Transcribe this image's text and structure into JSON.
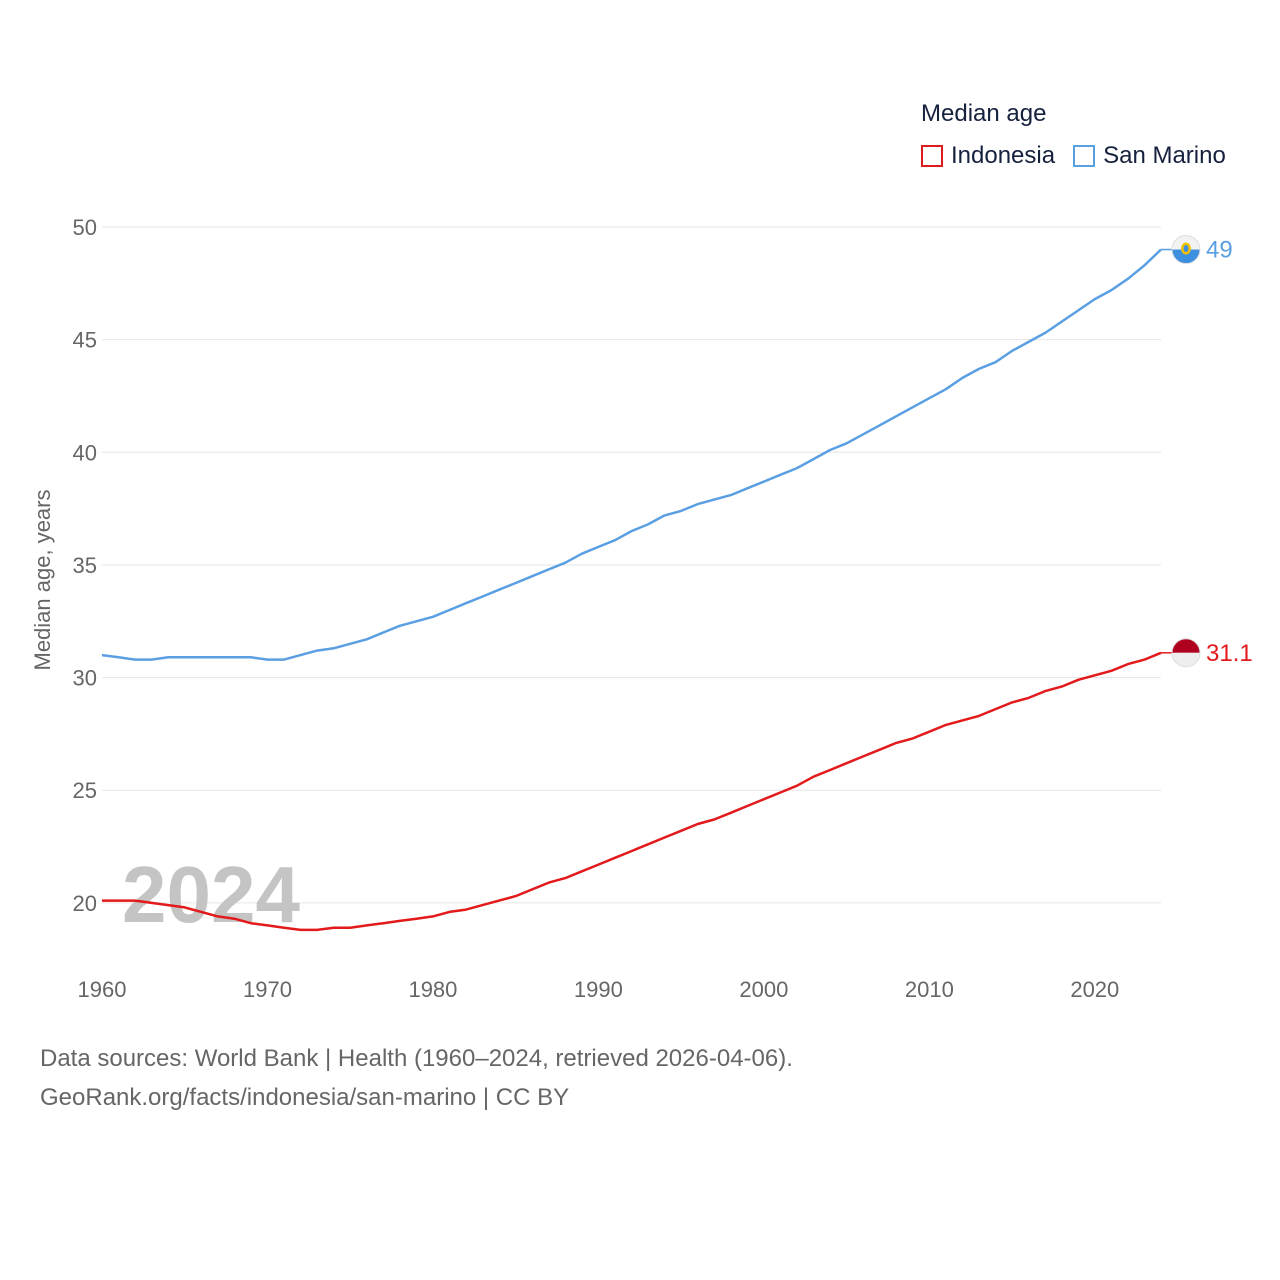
{
  "chart_data": {
    "type": "line",
    "title": "Median age",
    "xlabel": "",
    "ylabel": "Median age, years",
    "xlim": [
      1960,
      2024
    ],
    "ylim": [
      16,
      50
    ],
    "x_ticks": [
      "1960",
      "1970",
      "1980",
      "1990",
      "2000",
      "2010",
      "2020"
    ],
    "y_ticks": [
      "20",
      "25",
      "30",
      "35",
      "40",
      "45",
      "50"
    ],
    "year_label": "2024",
    "x": [
      1960,
      1961,
      1962,
      1963,
      1964,
      1965,
      1966,
      1967,
      1968,
      1969,
      1970,
      1971,
      1972,
      1973,
      1974,
      1975,
      1976,
      1977,
      1978,
      1979,
      1980,
      1981,
      1982,
      1983,
      1984,
      1985,
      1986,
      1987,
      1988,
      1989,
      1990,
      1991,
      1992,
      1993,
      1994,
      1995,
      1996,
      1997,
      1998,
      1999,
      2000,
      2001,
      2002,
      2003,
      2004,
      2005,
      2006,
      2007,
      2008,
      2009,
      2010,
      2011,
      2012,
      2013,
      2014,
      2015,
      2016,
      2017,
      2018,
      2019,
      2020,
      2021,
      2022,
      2023,
      2024
    ],
    "series": [
      {
        "name": "Indonesia",
        "color": "#e31a1c",
        "end_label": "31.1",
        "flag": "indonesia-flag-icon",
        "values": [
          20.1,
          20.1,
          20.1,
          20.0,
          19.9,
          19.8,
          19.6,
          19.4,
          19.3,
          19.1,
          19.0,
          18.9,
          18.8,
          18.8,
          18.9,
          18.9,
          19.0,
          19.1,
          19.2,
          19.3,
          19.4,
          19.6,
          19.7,
          19.9,
          20.1,
          20.3,
          20.6,
          20.9,
          21.1,
          21.4,
          21.7,
          22.0,
          22.3,
          22.6,
          22.9,
          23.2,
          23.5,
          23.7,
          24.0,
          24.3,
          24.6,
          24.9,
          25.2,
          25.6,
          25.9,
          26.2,
          26.5,
          26.8,
          27.1,
          27.3,
          27.6,
          27.9,
          28.1,
          28.3,
          28.6,
          28.9,
          29.1,
          29.4,
          29.6,
          29.9,
          30.1,
          30.3,
          30.6,
          30.8,
          31.1
        ]
      },
      {
        "name": "San Marino",
        "color": "#5b9fe3",
        "end_label": "49",
        "flag": "san-marino-flag-icon",
        "values": [
          31.0,
          30.9,
          30.8,
          30.8,
          30.9,
          30.9,
          30.9,
          30.9,
          30.9,
          30.9,
          30.8,
          30.8,
          31.0,
          31.2,
          31.3,
          31.5,
          31.7,
          32.0,
          32.3,
          32.5,
          32.7,
          33.0,
          33.3,
          33.6,
          33.9,
          34.2,
          34.5,
          34.8,
          35.1,
          35.5,
          35.8,
          36.1,
          36.5,
          36.8,
          37.2,
          37.4,
          37.7,
          37.9,
          38.1,
          38.4,
          38.7,
          39.0,
          39.3,
          39.7,
          40.1,
          40.4,
          40.8,
          41.2,
          41.6,
          42.0,
          42.4,
          42.8,
          43.3,
          43.7,
          44.0,
          44.5,
          44.9,
          45.3,
          45.8,
          46.3,
          46.8,
          47.2,
          47.7,
          48.3,
          49.0
        ]
      }
    ]
  },
  "legend": {
    "title": "Median age",
    "items": [
      "Indonesia",
      "San Marino"
    ]
  },
  "footer": {
    "sources": "Data sources: World Bank | Health (1960–2024, retrieved 2026-04-06).",
    "credit": "GeoRank.org/facts/indonesia/san-marino | CC BY"
  }
}
